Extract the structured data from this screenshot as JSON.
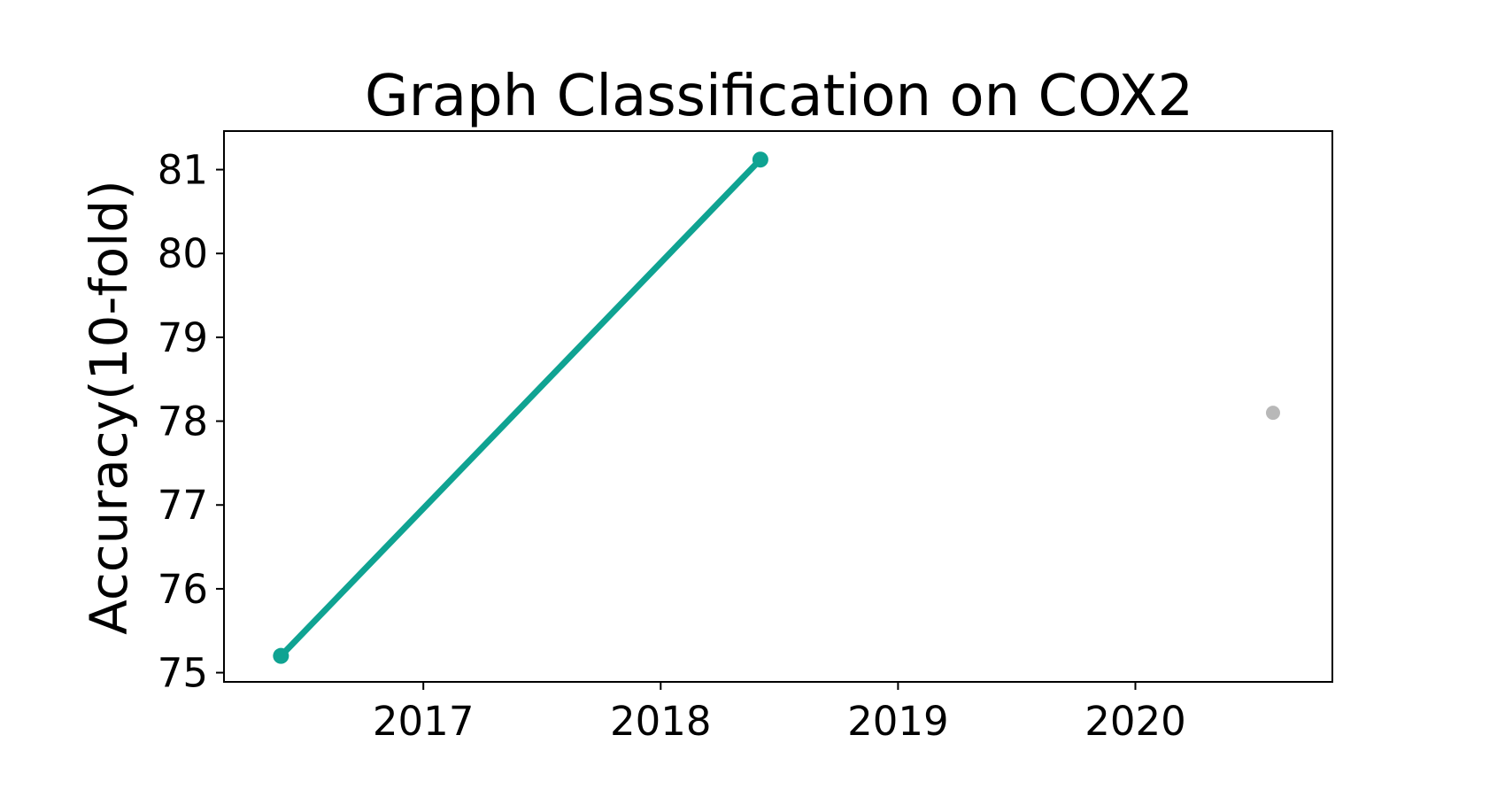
{
  "chart_data": {
    "type": "line",
    "title": "Graph Classification on COX2",
    "xlabel": "",
    "ylabel": "Accuracy(10-fold)",
    "xlim": [
      2016.16,
      2020.83
    ],
    "ylim": [
      74.89,
      81.46
    ],
    "x_ticks": [
      2017,
      2018,
      2019,
      2020
    ],
    "y_ticks": [
      75,
      76,
      77,
      78,
      79,
      80,
      81
    ],
    "grid": false,
    "series": [
      {
        "color": "#0fa392",
        "points": [
          {
            "x": 2016.4,
            "y": 75.2
          },
          {
            "x": 2018.42,
            "y": 81.12
          }
        ]
      },
      {
        "color": "#b8b8b8",
        "points": [
          {
            "x": 2020.58,
            "y": 78.1
          }
        ]
      }
    ]
  }
}
